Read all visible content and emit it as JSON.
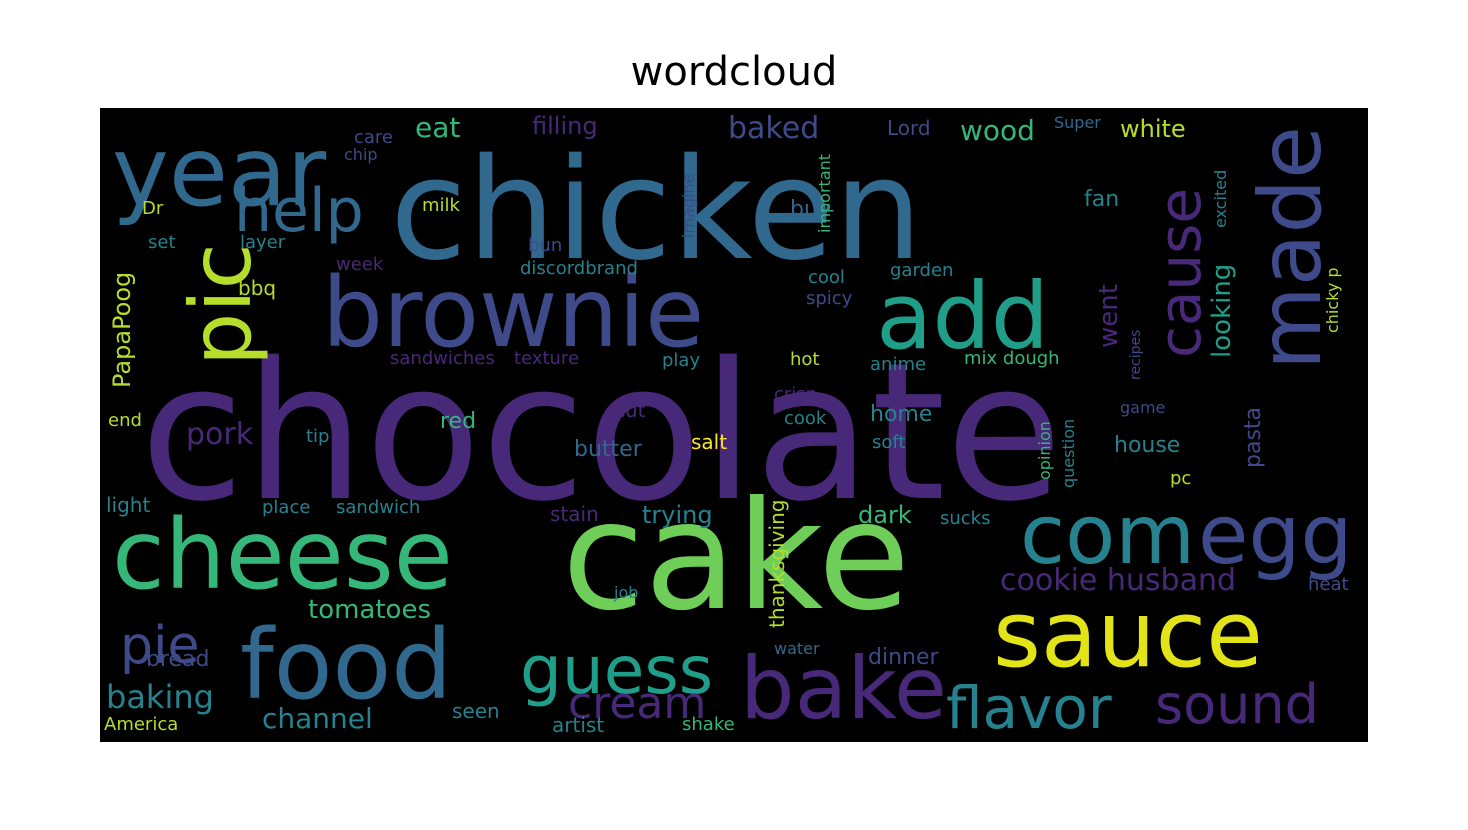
{
  "title": "wordcloud",
  "chart_data": {
    "type": "wordcloud",
    "title": "wordcloud",
    "background": "#000000",
    "colormap": [
      "#440154",
      "#482878",
      "#3e4a89",
      "#31688e",
      "#26828e",
      "#1f9e89",
      "#35b779",
      "#6ece58",
      "#b5de2b",
      "#fde725"
    ],
    "words": [
      {
        "text": "chocolate",
        "color": "#482878"
      },
      {
        "text": "chicken",
        "color": "#31688e"
      },
      {
        "text": "cake",
        "color": "#6ece58"
      },
      {
        "text": "cheese",
        "color": "#35b779"
      },
      {
        "text": "brownie",
        "color": "#3e4a89"
      },
      {
        "text": "food",
        "color": "#31688e"
      },
      {
        "text": "sauce",
        "color": "#e2e418"
      },
      {
        "text": "made",
        "color": "#3e4a89"
      },
      {
        "text": "year",
        "color": "#31688e"
      },
      {
        "text": "pic",
        "color": "#b5de2b"
      },
      {
        "text": "add",
        "color": "#1f9e89"
      },
      {
        "text": "com",
        "color": "#26828e"
      },
      {
        "text": "egg",
        "color": "#3e4a89"
      },
      {
        "text": "bake",
        "color": "#482878"
      },
      {
        "text": "cause",
        "color": "#482878"
      },
      {
        "text": "help",
        "color": "#31688e"
      },
      {
        "text": "guess",
        "color": "#1f9e89"
      },
      {
        "text": "pie",
        "color": "#3e4a89"
      },
      {
        "text": "cream",
        "color": "#482878"
      },
      {
        "text": "flavor",
        "color": "#26828e"
      },
      {
        "text": "sound",
        "color": "#482878"
      },
      {
        "text": "cookie husband",
        "color": "#482878"
      },
      {
        "text": "tomatoes",
        "color": "#35b779"
      },
      {
        "text": "baking",
        "color": "#26828e"
      },
      {
        "text": "channel",
        "color": "#26828e"
      },
      {
        "text": "looking",
        "color": "#1f9e89"
      },
      {
        "text": "went",
        "color": "#482878"
      },
      {
        "text": "PapaPoog",
        "color": "#b5de2b"
      },
      {
        "text": "baked",
        "color": "#3e4a89"
      },
      {
        "text": "wood",
        "color": "#35b779"
      },
      {
        "text": "eat",
        "color": "#35b779"
      },
      {
        "text": "filling",
        "color": "#482878"
      },
      {
        "text": "white",
        "color": "#b5de2b"
      },
      {
        "text": "pork",
        "color": "#482878"
      },
      {
        "text": "trying",
        "color": "#26828e"
      },
      {
        "text": "dark",
        "color": "#35b779"
      },
      {
        "text": "bread",
        "color": "#3e4a89"
      },
      {
        "text": "home",
        "color": "#26828e"
      },
      {
        "text": "house",
        "color": "#26828e"
      },
      {
        "text": "pasta",
        "color": "#3e4a89"
      },
      {
        "text": "dinner",
        "color": "#3e4a89"
      },
      {
        "text": "thanksgiving",
        "color": "#b5de2b"
      },
      {
        "text": "butter",
        "color": "#31688e"
      },
      {
        "text": "red",
        "color": "#35b779"
      },
      {
        "text": "salt",
        "color": "#fde725"
      },
      {
        "text": "cut",
        "color": "#482878"
      },
      {
        "text": "cook",
        "color": "#26828e"
      },
      {
        "text": "soft",
        "color": "#26828e"
      },
      {
        "text": "seen",
        "color": "#26828e"
      },
      {
        "text": "artist",
        "color": "#26828e"
      },
      {
        "text": "shake",
        "color": "#35b779"
      },
      {
        "text": "America",
        "color": "#b5de2b"
      },
      {
        "text": "sandwich",
        "color": "#26828e"
      },
      {
        "text": "place",
        "color": "#26828e"
      },
      {
        "text": "light",
        "color": "#26828e"
      },
      {
        "text": "stain",
        "color": "#482878"
      },
      {
        "text": "sucks",
        "color": "#26828e"
      },
      {
        "text": "crisp",
        "color": "#482878"
      },
      {
        "text": "buy",
        "color": "#31688e"
      },
      {
        "text": "fan",
        "color": "#26828e"
      },
      {
        "text": "excited",
        "color": "#26828e"
      },
      {
        "text": "chicky p",
        "color": "#b5de2b"
      },
      {
        "text": "important",
        "color": "#35b779"
      },
      {
        "text": "imagine",
        "color": "#3e4a89"
      },
      {
        "text": "milk",
        "color": "#b5de2b"
      },
      {
        "text": "layer",
        "color": "#26828e"
      },
      {
        "text": "set",
        "color": "#26828e"
      },
      {
        "text": "bbq",
        "color": "#b5de2b"
      },
      {
        "text": "week",
        "color": "#482878"
      },
      {
        "text": "discordbrand",
        "color": "#26828e"
      },
      {
        "text": "bun",
        "color": "#3e4a89"
      },
      {
        "text": "cool",
        "color": "#26828e"
      },
      {
        "text": "garden",
        "color": "#26828e"
      },
      {
        "text": "spicy",
        "color": "#3e4a89"
      },
      {
        "text": "hot",
        "color": "#b5de2b"
      },
      {
        "text": "anime",
        "color": "#26828e"
      },
      {
        "text": "mix dough",
        "color": "#35b779"
      },
      {
        "text": "play",
        "color": "#26828e"
      },
      {
        "text": "texture",
        "color": "#482878"
      },
      {
        "text": "sandwiches",
        "color": "#482878"
      },
      {
        "text": "recipes",
        "color": "#3e4a89"
      },
      {
        "text": "game",
        "color": "#3e4a89"
      },
      {
        "text": "question",
        "color": "#26828e"
      },
      {
        "text": "opinion",
        "color": "#35b779"
      },
      {
        "text": "end",
        "color": "#b5de2b"
      },
      {
        "text": "tip",
        "color": "#26828e"
      },
      {
        "text": "job",
        "color": "#26828e"
      },
      {
        "text": "water",
        "color": "#31688e"
      },
      {
        "text": "heat",
        "color": "#3e4a89"
      },
      {
        "text": "pc",
        "color": "#b5de2b"
      },
      {
        "text": "Dr",
        "color": "#b5de2b"
      },
      {
        "text": "chip",
        "color": "#3e4a89"
      },
      {
        "text": "care",
        "color": "#3e4a89"
      },
      {
        "text": "Lord",
        "color": "#3e4a89"
      },
      {
        "text": "Super",
        "color": "#31688e"
      }
    ]
  }
}
